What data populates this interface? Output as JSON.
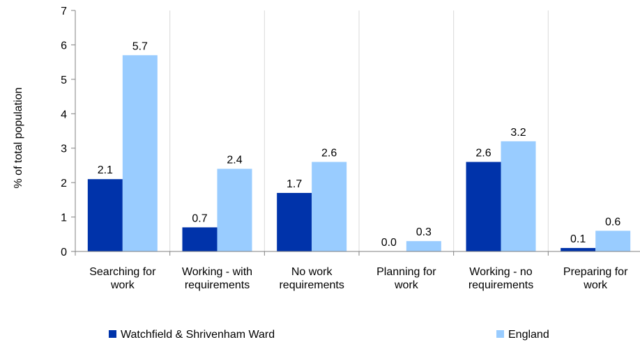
{
  "chart_data": {
    "type": "bar",
    "ylabel": "% of total population",
    "ylim": [
      0,
      7
    ],
    "yticks": [
      0,
      1,
      2,
      3,
      4,
      5,
      6,
      7
    ],
    "grid": "vertical separators",
    "legend_position": "bottom",
    "categories": [
      [
        "Searching for",
        "work"
      ],
      [
        "Working - with",
        "requirements"
      ],
      [
        "No work",
        "requirements"
      ],
      [
        "Planning for",
        "work"
      ],
      [
        "Working - no",
        "requirements"
      ],
      [
        "Preparing for",
        "work"
      ]
    ],
    "series": [
      {
        "name": "Watchfield & Shrivenham Ward",
        "color": "#0033AA",
        "values": [
          2.1,
          0.7,
          1.7,
          0.0,
          2.6,
          0.1
        ],
        "labels": [
          "2.1",
          "0.7",
          "1.7",
          "0.0",
          "2.6",
          "0.1"
        ]
      },
      {
        "name": "England",
        "color": "#99CCFF",
        "values": [
          5.7,
          2.4,
          2.6,
          0.3,
          3.2,
          0.6
        ],
        "labels": [
          "5.7",
          "2.4",
          "2.6",
          "0.3",
          "3.2",
          "0.6"
        ]
      }
    ]
  }
}
